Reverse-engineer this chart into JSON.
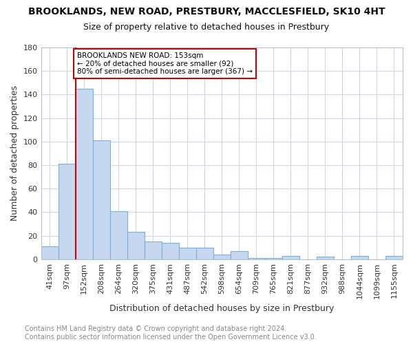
{
  "title": "BROOKLANDS, NEW ROAD, PRESTBURY, MACCLESFIELD, SK10 4HT",
  "subtitle": "Size of property relative to detached houses in Prestbury",
  "xlabel": "Distribution of detached houses by size in Prestbury",
  "ylabel": "Number of detached properties",
  "categories": [
    "41sqm",
    "97sqm",
    "152sqm",
    "208sqm",
    "264sqm",
    "320sqm",
    "375sqm",
    "431sqm",
    "487sqm",
    "542sqm",
    "598sqm",
    "654sqm",
    "709sqm",
    "765sqm",
    "821sqm",
    "877sqm",
    "932sqm",
    "988sqm",
    "1044sqm",
    "1099sqm",
    "1155sqm"
  ],
  "values": [
    11,
    81,
    145,
    101,
    41,
    23,
    15,
    14,
    10,
    10,
    4,
    7,
    1,
    1,
    3,
    0,
    2,
    0,
    3,
    0,
    3
  ],
  "bar_color": "#c5d8f0",
  "bar_edge_color": "#7aaedd",
  "vline_color": "#cc0000",
  "annotation_text": "BROOKLANDS NEW ROAD: 153sqm\n← 20% of detached houses are smaller (92)\n80% of semi-detached houses are larger (367) →",
  "annotation_box_color": "#ffffff",
  "annotation_box_edge": "#cc0000",
  "ylim": [
    0,
    180
  ],
  "yticks": [
    0,
    20,
    40,
    60,
    80,
    100,
    120,
    140,
    160,
    180
  ],
  "footer_text": "Contains HM Land Registry data © Crown copyright and database right 2024.\nContains public sector information licensed under the Open Government Licence v3.0.",
  "title_fontsize": 10,
  "subtitle_fontsize": 9,
  "axis_label_fontsize": 9,
  "tick_fontsize": 8,
  "footer_fontsize": 7,
  "background_color": "#ffffff",
  "plot_bg_color": "#ffffff",
  "grid_color": "#c8d4e8"
}
